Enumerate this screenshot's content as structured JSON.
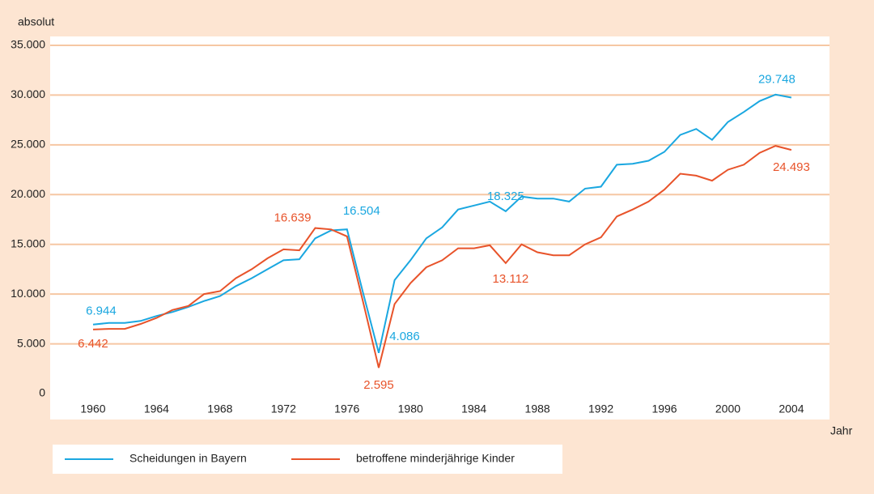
{
  "chart_data": {
    "type": "line",
    "y_axis_label": "absolut",
    "x_axis_label": "Jahr",
    "x": [
      1960,
      1961,
      1962,
      1963,
      1964,
      1965,
      1966,
      1967,
      1968,
      1969,
      1970,
      1971,
      1972,
      1973,
      1974,
      1975,
      1976,
      1977,
      1978,
      1979,
      1980,
      1981,
      1982,
      1983,
      1984,
      1985,
      1986,
      1987,
      1988,
      1989,
      1990,
      1991,
      1992,
      1993,
      1994,
      1995,
      1996,
      1997,
      1998,
      1999,
      2000,
      2001,
      2002,
      2003,
      2004
    ],
    "series": [
      {
        "name": "Scheidungen in Bayern",
        "color": "#1aa7e0",
        "values": [
          6944,
          7100,
          7100,
          7300,
          7800,
          8200,
          8700,
          9300,
          9800,
          10800,
          11600,
          12500,
          13400,
          13500,
          15600,
          16400,
          16504,
          10200,
          4086,
          11400,
          13400,
          15600,
          16700,
          18500,
          18900,
          19300,
          18325,
          19800,
          19600,
          19600,
          19300,
          20600,
          20800,
          23000,
          23100,
          23400,
          24300,
          26000,
          26600,
          25500,
          27300,
          28300,
          29400,
          30050,
          29748
        ],
        "value_labels": [
          "6.944",
          null,
          null,
          null,
          null,
          null,
          null,
          null,
          null,
          null,
          null,
          null,
          null,
          null,
          null,
          null,
          "16.504",
          null,
          "4.086",
          null,
          null,
          null,
          null,
          null,
          null,
          null,
          "18.325",
          null,
          null,
          null,
          null,
          null,
          null,
          null,
          null,
          null,
          null,
          null,
          null,
          null,
          null,
          null,
          null,
          null,
          "29.748"
        ]
      },
      {
        "name": "betroffene minderjährige Kinder",
        "color": "#e8532a",
        "values": [
          6442,
          6500,
          6500,
          7000,
          7600,
          8400,
          8800,
          10000,
          10300,
          11600,
          12500,
          13600,
          14500,
          14400,
          16639,
          16500,
          15800,
          9300,
          2595,
          9000,
          11100,
          12700,
          13400,
          14600,
          14600,
          14900,
          13112,
          15000,
          14200,
          13900,
          13900,
          15000,
          15700,
          17800,
          18500,
          19300,
          20500,
          22100,
          21900,
          21400,
          22500,
          23000,
          24200,
          24900,
          24493
        ],
        "value_labels": [
          "6.442",
          null,
          null,
          null,
          null,
          null,
          null,
          null,
          null,
          null,
          null,
          null,
          null,
          null,
          "16.639",
          null,
          null,
          null,
          "2.595",
          null,
          null,
          null,
          null,
          null,
          null,
          null,
          "13.112",
          null,
          null,
          null,
          null,
          null,
          null,
          null,
          null,
          null,
          null,
          null,
          null,
          null,
          null,
          null,
          null,
          null,
          "24.493"
        ]
      }
    ],
    "xlim": [
      1957.3,
      2006.4
    ],
    "xticks": [
      1960,
      1964,
      1968,
      1972,
      1976,
      1980,
      1984,
      1988,
      1992,
      1996,
      2000,
      2004
    ],
    "ylim": [
      0,
      35000
    ],
    "yticks": [
      0,
      {
        "value": 5000,
        "label": "5.000"
      },
      {
        "value": 10000,
        "label": "10.000"
      },
      {
        "value": 15000,
        "label": "15.000"
      },
      {
        "value": 20000,
        "label": "20.000"
      },
      {
        "value": 25000,
        "label": "25.000"
      },
      {
        "value": 30000,
        "label": "30.000"
      },
      {
        "value": 35000,
        "label": "35.000"
      }
    ],
    "grid": true
  }
}
